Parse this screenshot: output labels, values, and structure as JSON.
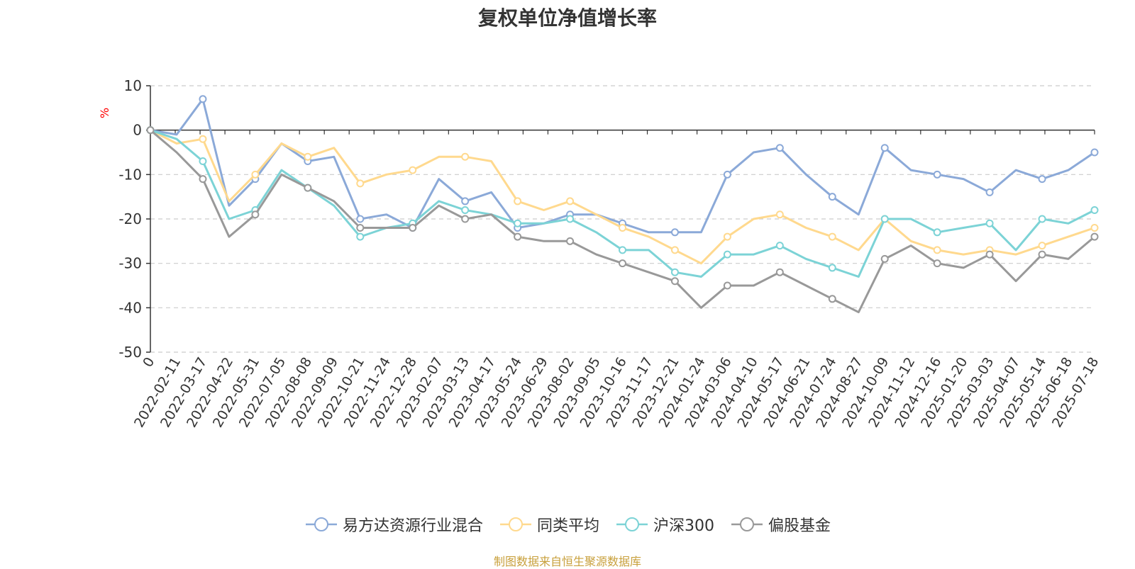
{
  "chart_data": {
    "type": "line",
    "title": "复权单位净值增长率",
    "ylabel": "%",
    "xlabel": "",
    "ylim": [
      -50,
      10
    ],
    "yticks": [
      10,
      0,
      -10,
      -20,
      -30,
      -40,
      -50
    ],
    "grid": true,
    "legend_position": "bottom",
    "x": [
      "0",
      "2022-02-11",
      "2022-03-17",
      "2022-04-22",
      "2022-05-31",
      "2022-07-05",
      "2022-08-08",
      "2022-09-09",
      "2022-10-21",
      "2022-11-24",
      "2022-12-28",
      "2023-02-07",
      "2023-03-13",
      "2023-04-17",
      "2023-05-24",
      "2023-06-29",
      "2023-08-02",
      "2023-09-05",
      "2023-10-16",
      "2023-11-17",
      "2023-12-21",
      "2024-01-24",
      "2024-03-06",
      "2024-04-10",
      "2024-05-17",
      "2024-06-21",
      "2024-07-24",
      "2024-08-27",
      "2024-10-09",
      "2024-11-12",
      "2024-12-16",
      "2025-01-20",
      "2025-03-03",
      "2025-04-07",
      "2025-05-14",
      "2025-06-18",
      "2025-07-18"
    ],
    "series": [
      {
        "name": "易方达资源行业混合",
        "color": "#8ba9d8",
        "values": [
          0,
          -1,
          7,
          -17,
          -11,
          -3,
          -7,
          -6,
          -20,
          -19,
          -22,
          -11,
          -16,
          -14,
          -22,
          -21,
          -19,
          -19,
          -21,
          -23,
          -23,
          -23,
          -10,
          -5,
          -4,
          -10,
          -15,
          -19,
          -4,
          -9,
          -10,
          -11,
          -14,
          -9,
          -11,
          -9,
          -5
        ]
      },
      {
        "name": "同类平均",
        "color": "#ffd98e",
        "values": [
          0,
          -3,
          -2,
          -16,
          -10,
          -3,
          -6,
          -4,
          -12,
          -10,
          -9,
          -6,
          -6,
          -7,
          -16,
          -18,
          -16,
          -19,
          -22,
          -24,
          -27,
          -30,
          -24,
          -20,
          -19,
          -22,
          -24,
          -27,
          -20,
          -25,
          -27,
          -28,
          -27,
          -28,
          -26,
          -24,
          -22
        ]
      },
      {
        "name": "沪深300",
        "color": "#7cd3d6",
        "values": [
          0,
          -2,
          -7,
          -20,
          -18,
          -9,
          -13,
          -17,
          -24,
          -22,
          -21,
          -16,
          -18,
          -19,
          -21,
          -21,
          -20,
          -23,
          -27,
          -27,
          -32,
          -33,
          -28,
          -28,
          -26,
          -29,
          -31,
          -33,
          -20,
          -20,
          -23,
          -22,
          -21,
          -27,
          -20,
          -21,
          -18
        ]
      },
      {
        "name": "偏股基金",
        "color": "#999999",
        "values": [
          0,
          -5,
          -11,
          -24,
          -19,
          -10,
          -13,
          -16,
          -22,
          -22,
          -22,
          -17,
          -20,
          -19,
          -24,
          -25,
          -25,
          -28,
          -30,
          -32,
          -34,
          -40,
          -35,
          -35,
          -32,
          -35,
          -38,
          -41,
          -29,
          -26,
          -30,
          -31,
          -28,
          -34,
          -28,
          -29,
          -24
        ]
      }
    ]
  },
  "page": {
    "title": "复权单位净值增长率",
    "y_unit": "%",
    "source_note": "制图数据来自恒生聚源数据库"
  }
}
